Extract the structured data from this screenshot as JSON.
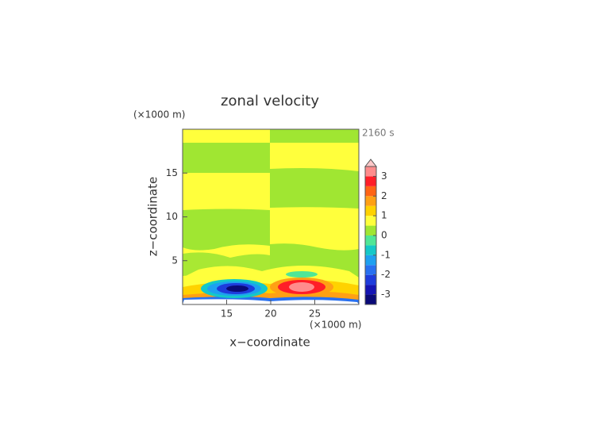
{
  "chart_data": {
    "type": "contour",
    "title": "zonal velocity",
    "x_label": "x−coordinate",
    "y_label": "z−coordinate",
    "x_unit": "(×1000 m)",
    "y_unit": "(×1000 m)",
    "time_label": "2160 s",
    "xlim": [
      10,
      30
    ],
    "ylim": [
      0,
      20
    ],
    "xticks": [
      15,
      20,
      25
    ],
    "yticks": [
      5,
      10,
      15
    ],
    "levels": [
      -3.5,
      -3,
      -2.5,
      -2,
      -1.5,
      -1,
      -0.5,
      0,
      0.5,
      1,
      1.5,
      2,
      2.5,
      3,
      3.5
    ],
    "colors": [
      "#0a0a78",
      "#1414b4",
      "#1e3cdc",
      "#2870f0",
      "#1ea0f0",
      "#14c8c8",
      "#50e696",
      "#a0e632",
      "#ffff3c",
      "#ffd200",
      "#ffa014",
      "#ff6414",
      "#ff1e28",
      "#ff8c8c"
    ],
    "colorbar_ticks": [
      -3,
      -2,
      -1,
      0,
      1,
      2,
      3
    ]
  }
}
